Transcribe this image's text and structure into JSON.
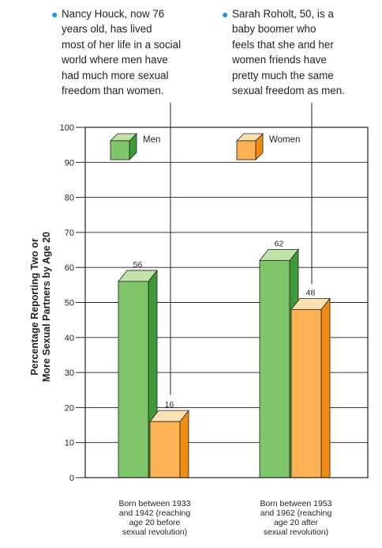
{
  "callouts": [
    {
      "text": "Nancy Houck, now 76\nyears old, has lived\nmost of her life in a social\nworld where men have\nhad much more sexual\nfreedom than women."
    },
    {
      "text": "Sarah Roholt, 50, is a\nbaby boomer who\nfeels that she and her\nwomen friends have\npretty much the same\nsexual freedom as men."
    }
  ],
  "colors": {
    "men_front": "#7fc66b",
    "men_top": "#bfe3a8",
    "men_side": "#3e9a38",
    "women_front": "#fbb154",
    "women_top": "#fde1b3",
    "women_side": "#f08c12",
    "bullet": "#1a9ad6"
  },
  "chart_data": {
    "type": "bar",
    "ylabel": "Percentage Reporting Two or\nMore Sexual Partners by Age 20",
    "ylim": [
      0,
      100
    ],
    "yticks": [
      0,
      10,
      20,
      30,
      40,
      50,
      60,
      70,
      80,
      90,
      100
    ],
    "grid": true,
    "categories": [
      "Born between 1933\nand 1942 (reaching\nage 20 before\nsexual revolution)",
      "Born between 1953\nand 1962 (reaching\nage 20 after\nsexual revolution)"
    ],
    "series": [
      {
        "name": "Men",
        "values": [
          56,
          62
        ]
      },
      {
        "name": "Women",
        "values": [
          16,
          48
        ]
      }
    ],
    "legend_position": "top"
  }
}
